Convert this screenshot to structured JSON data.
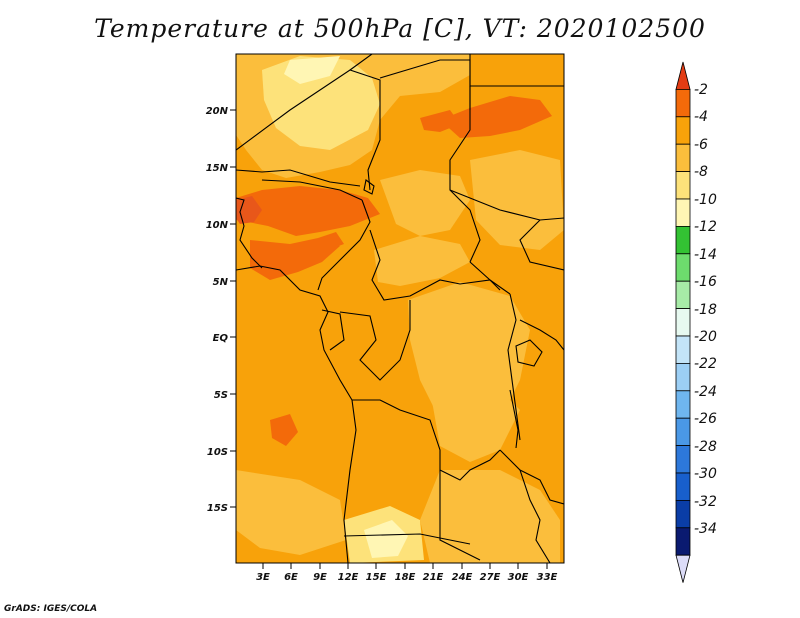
{
  "title": "Temperature at 500hPa [C], VT: 2020102500",
  "credit": "GrADS: IGES/COLA",
  "lat_labels": [
    "20N",
    "15N",
    "10N",
    "5N",
    "EQ",
    "5S",
    "10S",
    "15S"
  ],
  "lon_labels": [
    "3E",
    "6E",
    "9E",
    "12E",
    "15E",
    "18E",
    "21E",
    "24E",
    "27E",
    "30E",
    "33E"
  ],
  "colorbar": {
    "labels": [
      "-2",
      "-4",
      "-6",
      "-8",
      "-10",
      "-12",
      "-14",
      "-16",
      "-18",
      "-20",
      "-22",
      "-24",
      "-26",
      "-28",
      "-30",
      "-32",
      "-34"
    ],
    "colors": [
      "#e23c14",
      "#f36a0a",
      "#f8a20a",
      "#fbbe3c",
      "#fde27a",
      "#fff6b4",
      "#33c233",
      "#6ddc6d",
      "#a7eba7",
      "#e7f9f0",
      "#c3e4f8",
      "#9ccff5",
      "#6fb6ef",
      "#4a98e6",
      "#2d78da",
      "#185fcc",
      "#0a3da6",
      "#0a1a70",
      "#dcdcf8"
    ]
  },
  "field_colors": {
    "base": "#f8a20a",
    "warm": "#f36a0a",
    "mid": "#fbbe3c",
    "cool": "#fde27a",
    "coolest": "#fff6b4"
  }
}
